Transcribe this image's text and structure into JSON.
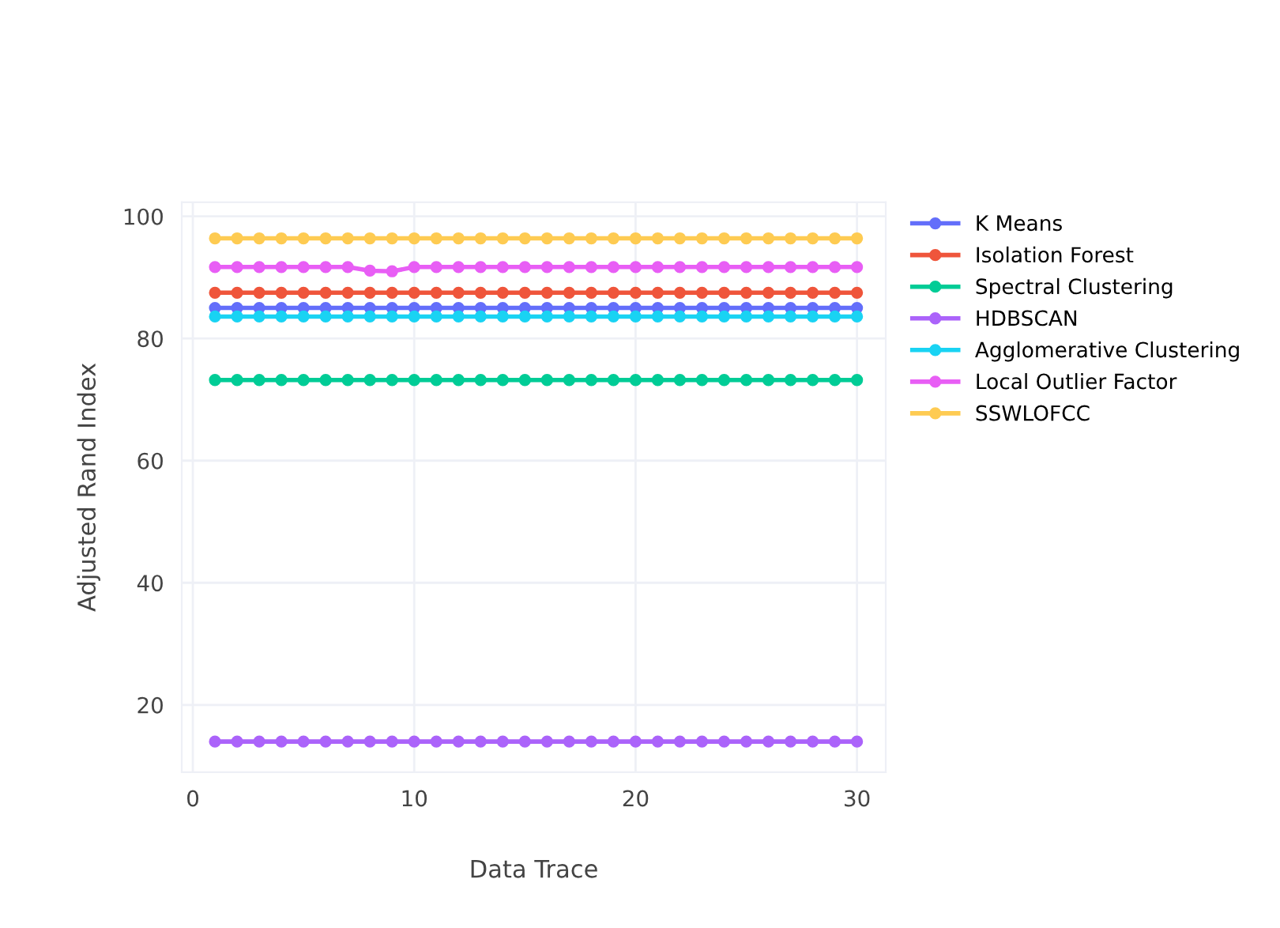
{
  "chart_data": {
    "type": "line",
    "xlabel": "Data Trace",
    "ylabel": "Adjusted Rand Index",
    "x": [
      1,
      2,
      3,
      4,
      5,
      6,
      7,
      8,
      9,
      10,
      11,
      12,
      13,
      14,
      15,
      16,
      17,
      18,
      19,
      20,
      21,
      22,
      23,
      24,
      25,
      26,
      27,
      28,
      29,
      30
    ],
    "series": [
      {
        "name": "K Means",
        "color": "#636efa",
        "values": [
          85,
          85,
          85,
          85,
          85,
          85,
          85,
          85,
          85,
          85,
          85,
          85,
          85,
          85,
          85,
          85,
          85,
          85,
          85,
          85,
          85,
          85,
          85,
          85,
          85,
          85,
          85,
          85,
          85,
          85
        ]
      },
      {
        "name": "Isolation Forest",
        "color": "#ef553b",
        "values": [
          87.5,
          87.5,
          87.5,
          87.5,
          87.5,
          87.5,
          87.5,
          87.5,
          87.5,
          87.5,
          87.5,
          87.5,
          87.5,
          87.5,
          87.5,
          87.5,
          87.5,
          87.5,
          87.5,
          87.5,
          87.5,
          87.5,
          87.5,
          87.5,
          87.5,
          87.5,
          87.5,
          87.5,
          87.5,
          87.5
        ]
      },
      {
        "name": "Spectral Clustering",
        "color": "#00cc96",
        "values": [
          73.2,
          73.2,
          73.2,
          73.2,
          73.2,
          73.2,
          73.2,
          73.2,
          73.2,
          73.2,
          73.2,
          73.2,
          73.2,
          73.2,
          73.2,
          73.2,
          73.2,
          73.2,
          73.2,
          73.2,
          73.2,
          73.2,
          73.2,
          73.2,
          73.2,
          73.2,
          73.2,
          73.2,
          73.2,
          73.2
        ]
      },
      {
        "name": "HDBSCAN",
        "color": "#ab63fa",
        "values": [
          14,
          14,
          14,
          14,
          14,
          14,
          14,
          14,
          14,
          14,
          14,
          14,
          14,
          14,
          14,
          14,
          14,
          14,
          14,
          14,
          14,
          14,
          14,
          14,
          14,
          14,
          14,
          14,
          14,
          14
        ]
      },
      {
        "name": "Agglomerative Clustering",
        "color": "#19d3f3",
        "values": [
          83.6,
          83.6,
          83.6,
          83.6,
          83.6,
          83.6,
          83.6,
          83.6,
          83.6,
          83.6,
          83.6,
          83.6,
          83.6,
          83.6,
          83.6,
          83.6,
          83.6,
          83.6,
          83.6,
          83.6,
          83.6,
          83.6,
          83.6,
          83.6,
          83.6,
          83.6,
          83.6,
          83.6,
          83.6,
          83.6
        ]
      },
      {
        "name": "Local Outlier Factor",
        "color": "#e85ef5",
        "values": [
          91.7,
          91.7,
          91.7,
          91.7,
          91.7,
          91.7,
          91.7,
          91.1,
          91,
          91.7,
          91.7,
          91.7,
          91.7,
          91.7,
          91.7,
          91.7,
          91.7,
          91.7,
          91.7,
          91.7,
          91.7,
          91.7,
          91.7,
          91.7,
          91.7,
          91.7,
          91.7,
          91.7,
          91.7,
          91.7
        ]
      },
      {
        "name": "SSWLOFCC",
        "color": "#fecb52",
        "values": [
          96.4,
          96.4,
          96.4,
          96.4,
          96.4,
          96.4,
          96.4,
          96.4,
          96.4,
          96.4,
          96.4,
          96.4,
          96.4,
          96.4,
          96.4,
          96.4,
          96.4,
          96.4,
          96.4,
          96.4,
          96.4,
          96.4,
          96.4,
          96.4,
          96.4,
          96.4,
          96.4,
          96.4,
          96.4,
          96.4
        ]
      }
    ],
    "xlim": [
      -0.5,
      31.3
    ],
    "ylim": [
      9,
      102.3
    ],
    "xticks": [
      0,
      10,
      20,
      30
    ],
    "yticks": [
      20,
      40,
      60,
      80,
      100
    ],
    "grid": true,
    "legend": "top right",
    "marker": "circle",
    "line_style": "solid"
  }
}
